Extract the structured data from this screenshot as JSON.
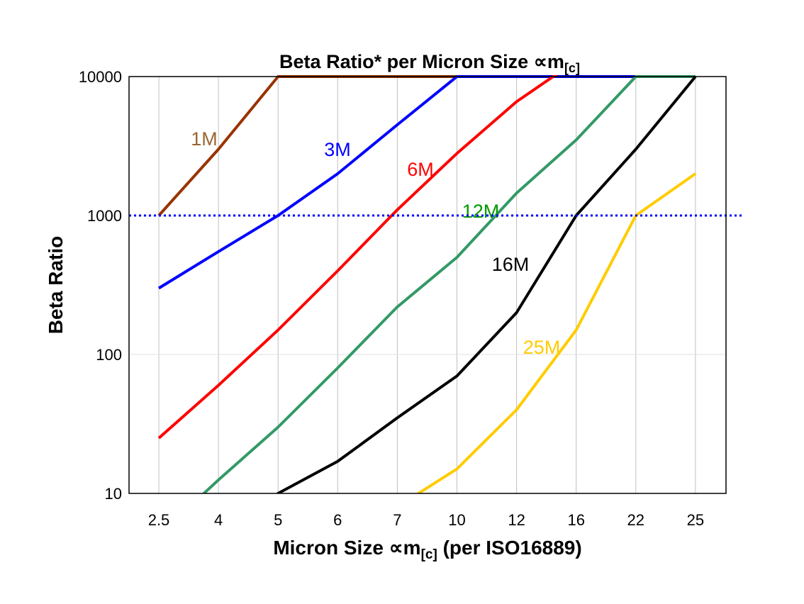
{
  "chart_data": {
    "type": "line",
    "title": "Beta Ratio* per Micron Size ∝m",
    "title_subscript": "[c]",
    "xlabel": "Micron Size ∝m",
    "xlabel_subscript": "[c]",
    "xlabel_suffix": " (per ISO16889)",
    "ylabel": "Beta Ratio",
    "y_scale": "log",
    "ylim": [
      10,
      10000
    ],
    "y_ticks": [
      "10",
      "100",
      "1000",
      "10000"
    ],
    "categories": [
      "2.5",
      "4",
      "5",
      "6",
      "7",
      "10",
      "12",
      "16",
      "22",
      "25"
    ],
    "grid": {
      "vertical": true,
      "horizontal": true
    },
    "reference_line": {
      "y": 1000,
      "color": "#0000FF",
      "style": "dotted"
    },
    "series": [
      {
        "name": "1M",
        "color": "#993300",
        "label_color": "#996633",
        "values": [
          1000,
          3000,
          10000,
          10000,
          10000,
          10000,
          10000,
          10000,
          10000,
          10000
        ]
      },
      {
        "name": "3M",
        "color": "#0000FF",
        "label_color": "#0000FF",
        "values": [
          300,
          550,
          1000,
          2000,
          4500,
          10000,
          10000,
          10000,
          10000,
          10000
        ]
      },
      {
        "name": "6M",
        "color": "#FF0000",
        "label_color": "#FF0000",
        "values": [
          25,
          60,
          150,
          400,
          1100,
          2800,
          6600,
          13000,
          null,
          null
        ]
      },
      {
        "name": "12M",
        "color": "#339966",
        "label_color": "#009900",
        "values": [
          5,
          12.5,
          30,
          80,
          220,
          500,
          1450,
          3500,
          10000,
          10000
        ]
      },
      {
        "name": "16M",
        "color": "#000000",
        "label_color": "#000000",
        "values": [
          null,
          5,
          10,
          17,
          35,
          70,
          200,
          1000,
          3000,
          10000
        ]
      },
      {
        "name": "25M",
        "color": "#FFCC00",
        "label_color": "#FFCC00",
        "values": [
          null,
          null,
          null,
          null,
          8,
          15,
          40,
          150,
          1000,
          2000
        ]
      }
    ]
  }
}
